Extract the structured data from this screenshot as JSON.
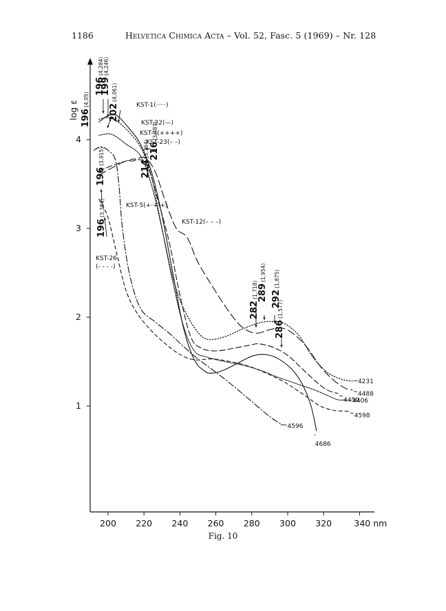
{
  "header": {
    "page_number": "1186",
    "journal": "Helvetica Chimica Acta",
    "issue": " – Vol. 52, Fasc. 5 (1969) – Nr. 128"
  },
  "caption": "Fig. 10",
  "chart_data": {
    "type": "line",
    "ylabel": "log ε",
    "xlabel": "",
    "xlim": [
      190,
      340
    ],
    "ylim": [
      -0.2,
      5
    ],
    "x_ticks": [
      "200",
      "220",
      "240",
      "260",
      "280",
      "300",
      "320",
      "340 nm"
    ],
    "y_ticks": [
      "1",
      "2",
      "3",
      "4"
    ],
    "series": [
      {
        "name": "KST-1(·····)",
        "end_label": "4231",
        "style": "dotted",
        "points": [
          [
            195,
            4.23
          ],
          [
            199,
            4.25
          ],
          [
            204,
            4.22
          ],
          [
            210,
            4.12
          ],
          [
            218,
            3.92
          ],
          [
            224,
            3.6
          ],
          [
            230,
            3.0
          ],
          [
            236,
            2.45
          ],
          [
            242,
            2.1
          ],
          [
            250,
            1.83
          ],
          [
            256,
            1.75
          ],
          [
            265,
            1.78
          ],
          [
            275,
            1.87
          ],
          [
            285,
            1.94
          ],
          [
            292,
            1.95
          ],
          [
            298,
            1.93
          ],
          [
            306,
            1.8
          ],
          [
            314,
            1.55
          ],
          [
            322,
            1.38
          ],
          [
            330,
            1.3
          ],
          [
            336,
            1.28
          ]
        ]
      },
      {
        "name": "KST-22(—)",
        "end_label": "4686",
        "style": "solid",
        "points": [
          [
            195,
            4.2
          ],
          [
            200,
            4.27
          ],
          [
            205,
            4.27
          ],
          [
            212,
            4.12
          ],
          [
            218,
            3.95
          ],
          [
            224,
            3.65
          ],
          [
            230,
            3.15
          ],
          [
            236,
            2.5
          ],
          [
            242,
            1.88
          ],
          [
            248,
            1.52
          ],
          [
            254,
            1.39
          ],
          [
            258,
            1.37
          ],
          [
            264,
            1.4
          ],
          [
            272,
            1.48
          ],
          [
            280,
            1.56
          ],
          [
            287,
            1.58
          ],
          [
            294,
            1.54
          ],
          [
            302,
            1.42
          ],
          [
            308,
            1.25
          ],
          [
            313,
            1.0
          ],
          [
            316,
            0.72
          ]
        ]
      },
      {
        "name": "KST-4(++++)",
        "end_label": "4406",
        "style": "plus",
        "points": [
          [
            195,
            4.05
          ],
          [
            202,
            4.06
          ],
          [
            210,
            3.95
          ],
          [
            218,
            3.82
          ],
          [
            224,
            3.5
          ],
          [
            230,
            3.0
          ],
          [
            236,
            2.4
          ],
          [
            242,
            1.9
          ],
          [
            248,
            1.62
          ],
          [
            255,
            1.55
          ],
          [
            265,
            1.5
          ],
          [
            275,
            1.46
          ],
          [
            285,
            1.4
          ],
          [
            295,
            1.32
          ],
          [
            305,
            1.25
          ],
          [
            315,
            1.18
          ],
          [
            322,
            1.12
          ],
          [
            328,
            1.07
          ],
          [
            333,
            1.07
          ]
        ]
      },
      {
        "name": "KST-23(– –)",
        "end_label": "4450",
        "style": "dashed",
        "points": [
          [
            195,
            3.65
          ],
          [
            204,
            3.72
          ],
          [
            210,
            3.76
          ],
          [
            216,
            3.78
          ],
          [
            222,
            3.7
          ],
          [
            228,
            3.3
          ],
          [
            234,
            2.85
          ],
          [
            240,
            2.25
          ],
          [
            246,
            1.78
          ],
          [
            252,
            1.65
          ],
          [
            260,
            1.62
          ],
          [
            270,
            1.65
          ],
          [
            280,
            1.69
          ],
          [
            284,
            1.7
          ],
          [
            292,
            1.66
          ],
          [
            300,
            1.57
          ],
          [
            308,
            1.42
          ],
          [
            316,
            1.27
          ],
          [
            322,
            1.18
          ],
          [
            328,
            1.14
          ]
        ]
      },
      {
        "name": "KST-12(– – –)",
        "end_label": "4488",
        "style": "longdash",
        "points": [
          [
            195,
            3.6
          ],
          [
            202,
            3.68
          ],
          [
            210,
            3.76
          ],
          [
            214,
            3.76
          ],
          [
            220,
            3.8
          ],
          [
            226,
            3.65
          ],
          [
            232,
            3.3
          ],
          [
            238,
            3.0
          ],
          [
            244,
            2.9
          ],
          [
            250,
            2.62
          ],
          [
            258,
            2.35
          ],
          [
            266,
            2.1
          ],
          [
            274,
            1.9
          ],
          [
            282,
            1.82
          ],
          [
            290,
            1.86
          ],
          [
            296,
            1.88
          ],
          [
            302,
            1.83
          ],
          [
            310,
            1.68
          ],
          [
            318,
            1.45
          ],
          [
            325,
            1.3
          ],
          [
            332,
            1.2
          ],
          [
            336,
            1.18
          ]
        ]
      },
      {
        "name": "KST-5(+·+·+)",
        "end_label": "4596",
        "style": "dashdot",
        "points": [
          [
            192,
            3.88
          ],
          [
            196,
            3.92
          ],
          [
            200,
            3.88
          ],
          [
            204,
            3.78
          ],
          [
            206,
            3.5
          ],
          [
            208,
            3.0
          ],
          [
            212,
            2.48
          ],
          [
            218,
            2.1
          ],
          [
            226,
            1.95
          ],
          [
            234,
            1.82
          ],
          [
            242,
            1.67
          ],
          [
            250,
            1.53
          ],
          [
            260,
            1.38
          ],
          [
            270,
            1.22
          ],
          [
            280,
            1.05
          ],
          [
            290,
            0.88
          ],
          [
            296,
            0.8
          ]
        ]
      },
      {
        "name": "KST-26(- - - -)",
        "end_label": "4598",
        "style": "shortdash",
        "points": [
          [
            195,
            3.33
          ],
          [
            200,
            3.12
          ],
          [
            205,
            2.7
          ],
          [
            210,
            2.3
          ],
          [
            216,
            2.05
          ],
          [
            224,
            1.85
          ],
          [
            232,
            1.7
          ],
          [
            240,
            1.58
          ],
          [
            248,
            1.52
          ],
          [
            258,
            1.53
          ],
          [
            268,
            1.5
          ],
          [
            278,
            1.45
          ],
          [
            288,
            1.37
          ],
          [
            298,
            1.27
          ],
          [
            308,
            1.14
          ],
          [
            318,
            1.0
          ],
          [
            326,
            0.95
          ],
          [
            334,
            0.94
          ]
        ]
      }
    ],
    "peak_annotations": [
      {
        "text": "196",
        "sub": "(4,284)"
      },
      {
        "text": "199",
        "sub": "(4,246)"
      },
      {
        "text": "202",
        "sub": "(4,061)"
      },
      {
        "text": "196",
        "sub": "(4,05)"
      },
      {
        "text": "216",
        "sub": "(3,787)"
      },
      {
        "text": "214",
        "sub": "(3,764)"
      },
      {
        "text": "196",
        "sub": "(3,915)"
      },
      {
        "text": "196",
        "sub": "(3,384)"
      },
      {
        "text": "282",
        "sub": "(1,718)"
      },
      {
        "text": "289",
        "sub": "(1,954)"
      },
      {
        "text": "292",
        "sub": "(1,875)"
      },
      {
        "text": "286",
        "sub": "(1,577)"
      }
    ],
    "legend_labels": {
      "kst1": "KST-1(·····)",
      "kst22": "KST-22(—)",
      "kst4": "KST-4(++++)",
      "kst23": "KST-23(– –)",
      "kst5": "KST-5(+·+·+)",
      "kst12": "KST-12(– – –)",
      "kst26a": "KST-26",
      "kst26b": "(- - - -)"
    },
    "grid": false,
    "legend": "inline"
  }
}
